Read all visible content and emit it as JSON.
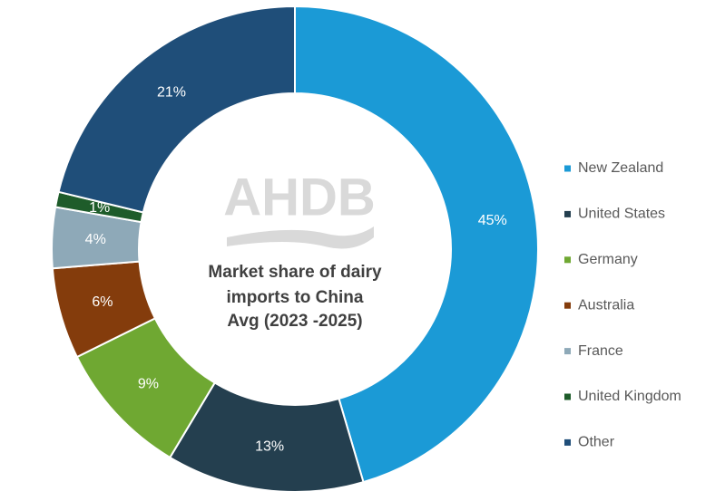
{
  "chart_data": {
    "type": "pie",
    "title": [
      "Market share of dairy",
      "imports to China",
      "Avg (2023 -2025)"
    ],
    "watermark": "AHDB",
    "categories": [
      "New Zealand",
      "United States",
      "Germany",
      "Australia",
      "France",
      "United Kingdom",
      "Other"
    ],
    "values": [
      45,
      13,
      9,
      6,
      4,
      1,
      21
    ],
    "value_labels": [
      "45%",
      "13%",
      "9%",
      "6%",
      "4%",
      "1%",
      "21%"
    ],
    "colors": [
      "#1b9ad6",
      "#243f4f",
      "#6fa832",
      "#843c0c",
      "#8ea9b8",
      "#1e5c2a",
      "#1f4e79"
    ],
    "legend": "right"
  }
}
